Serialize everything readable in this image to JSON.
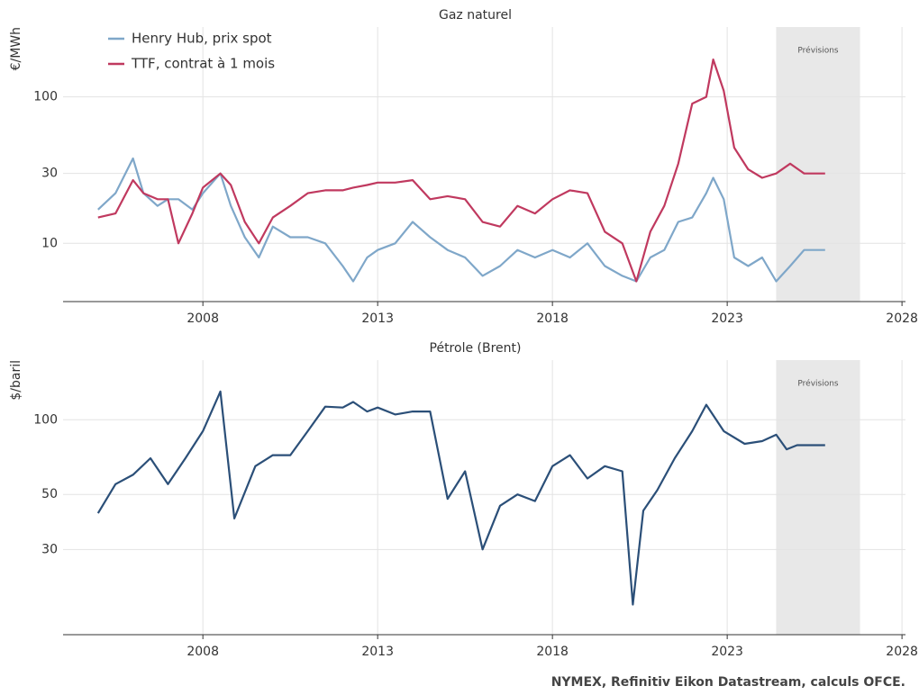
{
  "chart_data": [
    {
      "type": "line",
      "title": "Gaz naturel",
      "y_label": "€/MWh",
      "x": [
        2005.0,
        2005.5,
        2006.0,
        2006.3,
        2006.7,
        2007.0,
        2007.3,
        2007.7,
        2008.0,
        2008.5,
        2008.8,
        2009.2,
        2009.6,
        2010.0,
        2010.5,
        2011.0,
        2011.5,
        2012.0,
        2012.3,
        2012.7,
        2013.0,
        2013.5,
        2014.0,
        2014.5,
        2015.0,
        2015.5,
        2016.0,
        2016.5,
        2017.0,
        2017.5,
        2018.0,
        2018.5,
        2019.0,
        2019.5,
        2020.0,
        2020.4,
        2020.8,
        2021.2,
        2021.6,
        2022.0,
        2022.4,
        2022.6,
        2022.9,
        2023.2,
        2023.6,
        2024.0,
        2024.4,
        2024.8,
        2025.2,
        2025.8
      ],
      "series": [
        {
          "name": "Henry Hub, prix spot",
          "color": "#7fa7c9",
          "values": [
            17,
            22,
            38,
            22,
            18,
            20,
            20,
            17,
            22,
            30,
            18,
            11,
            8,
            13,
            11,
            11,
            10,
            7,
            5.5,
            8,
            9,
            10,
            14,
            11,
            9,
            8,
            6,
            7,
            9,
            8,
            9,
            8,
            10,
            7,
            6,
            5.5,
            8,
            9,
            14,
            15,
            22,
            28,
            20,
            8,
            7,
            8,
            5.5,
            7,
            9,
            9
          ]
        },
        {
          "name": "TTF, contrat à 1 mois",
          "color": "#c0395f",
          "values": [
            15,
            16,
            27,
            22,
            20,
            20,
            10,
            16,
            24,
            30,
            25,
            14,
            10,
            15,
            18,
            22,
            23,
            23,
            24,
            25,
            26,
            26,
            27,
            20,
            21,
            20,
            14,
            13,
            18,
            16,
            20,
            23,
            22,
            12,
            10,
            5.5,
            12,
            18,
            35,
            90,
            100,
            180,
            110,
            45,
            32,
            28,
            30,
            35,
            30,
            30
          ]
        }
      ],
      "xlim": [
        2004,
        2028.1
      ],
      "xticks": [
        2008,
        2013,
        2018,
        2023,
        2028
      ],
      "ylim": [
        4,
        300
      ],
      "yticks": [
        10,
        30,
        100
      ],
      "log_y": true,
      "grid": true,
      "legend": "upper left",
      "forecast": {
        "label": "Prévisions",
        "x": [
          2024.4,
          2026.8
        ]
      }
    },
    {
      "type": "line",
      "title": "Pétrole (Brent)",
      "y_label": "$/baril",
      "x": [
        2005.0,
        2005.5,
        2006.0,
        2006.5,
        2007.0,
        2007.5,
        2008.0,
        2008.5,
        2008.9,
        2009.5,
        2010.0,
        2010.5,
        2011.0,
        2011.5,
        2012.0,
        2012.3,
        2012.7,
        2013.0,
        2013.5,
        2014.0,
        2014.5,
        2015.0,
        2015.5,
        2016.0,
        2016.5,
        2017.0,
        2017.5,
        2018.0,
        2018.5,
        2019.0,
        2019.5,
        2020.0,
        2020.3,
        2020.6,
        2021.0,
        2021.5,
        2022.0,
        2022.4,
        2022.9,
        2023.5,
        2024.0,
        2024.4,
        2024.7,
        2025.0,
        2025.8
      ],
      "series": [
        {
          "name": "Brent",
          "color": "#2b4f78",
          "values": [
            42,
            55,
            60,
            70,
            55,
            70,
            90,
            130,
            40,
            65,
            72,
            72,
            90,
            113,
            112,
            118,
            108,
            112,
            105,
            108,
            108,
            48,
            62,
            30,
            45,
            50,
            47,
            65,
            72,
            58,
            65,
            62,
            18,
            43,
            52,
            70,
            90,
            115,
            90,
            80,
            82,
            87,
            76,
            79,
            79
          ]
        }
      ],
      "xlim": [
        2004,
        2028.1
      ],
      "xticks": [
        2008,
        2013,
        2018,
        2023,
        2028
      ],
      "ylim": [
        13.6,
        174
      ],
      "yticks": [
        30,
        50,
        100
      ],
      "log_y": true,
      "grid": true,
      "forecast": {
        "label": "Prévisions",
        "x": [
          2024.4,
          2026.8
        ]
      }
    }
  ],
  "source": "NYMEX, Refinitiv Eikon Datastream, calculs OFCE."
}
